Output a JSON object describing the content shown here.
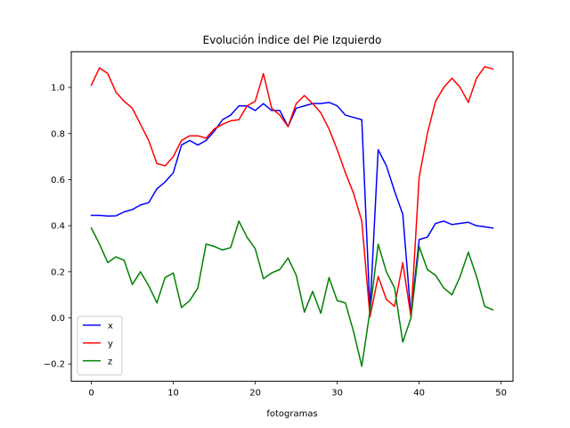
{
  "chart_data": {
    "type": "line",
    "title": "Evolución Índice del Pie Izquierdo",
    "xlabel": "fotogramas",
    "ylabel": "",
    "xlim": [
      -2.45,
      51.45
    ],
    "ylim": [
      -0.275,
      1.155
    ],
    "xticks": [
      0,
      10,
      20,
      30,
      40,
      50
    ],
    "yticks": [
      -0.2,
      0.0,
      0.2,
      0.4,
      0.6,
      0.8,
      1.0
    ],
    "ytick_labels": [
      "−0.2",
      "0.0",
      "0.2",
      "0.4",
      "0.6",
      "0.8",
      "1.0"
    ],
    "grid": false,
    "legend_position": "lower-left",
    "x": [
      0,
      1,
      2,
      3,
      4,
      5,
      6,
      7,
      8,
      9,
      10,
      11,
      12,
      13,
      14,
      15,
      16,
      17,
      18,
      19,
      20,
      21,
      22,
      23,
      24,
      25,
      26,
      27,
      28,
      29,
      30,
      31,
      32,
      33,
      34,
      35,
      36,
      37,
      38,
      39,
      40,
      41,
      42,
      43,
      44,
      45,
      46,
      47,
      48,
      49
    ],
    "series": [
      {
        "name": "x",
        "color": "#0000ff",
        "values": [
          0.445,
          0.445,
          0.442,
          0.443,
          0.46,
          0.47,
          0.49,
          0.5,
          0.56,
          0.59,
          0.63,
          0.75,
          0.77,
          0.75,
          0.77,
          0.81,
          0.86,
          0.88,
          0.92,
          0.92,
          0.9,
          0.93,
          0.9,
          0.9,
          0.83,
          0.91,
          0.92,
          0.93,
          0.93,
          0.935,
          0.92,
          0.88,
          0.87,
          0.86,
          0.03,
          0.73,
          0.66,
          0.55,
          0.45,
          0.01,
          0.34,
          0.35,
          0.41,
          0.42,
          0.405,
          0.41,
          0.415,
          0.4,
          0.395,
          0.39
        ]
      },
      {
        "name": "y",
        "color": "#ff0000",
        "values": [
          1.01,
          1.085,
          1.06,
          0.98,
          0.94,
          0.91,
          0.84,
          0.77,
          0.67,
          0.66,
          0.7,
          0.77,
          0.79,
          0.79,
          0.78,
          0.82,
          0.84,
          0.855,
          0.86,
          0.92,
          0.94,
          1.06,
          0.91,
          0.88,
          0.83,
          0.93,
          0.965,
          0.93,
          0.89,
          0.82,
          0.73,
          0.63,
          0.54,
          0.42,
          0.005,
          0.18,
          0.08,
          0.05,
          0.24,
          0.005,
          0.61,
          0.8,
          0.94,
          1.0,
          1.04,
          1.0,
          0.935,
          1.04,
          1.09,
          1.08
        ]
      },
      {
        "name": "z",
        "color": "#008000",
        "values": [
          0.39,
          0.32,
          0.24,
          0.265,
          0.25,
          0.145,
          0.2,
          0.14,
          0.065,
          0.175,
          0.195,
          0.045,
          0.075,
          0.13,
          0.32,
          0.31,
          0.295,
          0.305,
          0.42,
          0.35,
          0.3,
          0.17,
          0.195,
          0.21,
          0.26,
          0.185,
          0.025,
          0.115,
          0.02,
          0.175,
          0.075,
          0.065,
          -0.06,
          -0.21,
          0.03,
          0.32,
          0.2,
          0.13,
          -0.105,
          0.0,
          0.31,
          0.21,
          0.185,
          0.13,
          0.1,
          0.18,
          0.285,
          0.18,
          0.05,
          0.035
        ]
      }
    ]
  }
}
